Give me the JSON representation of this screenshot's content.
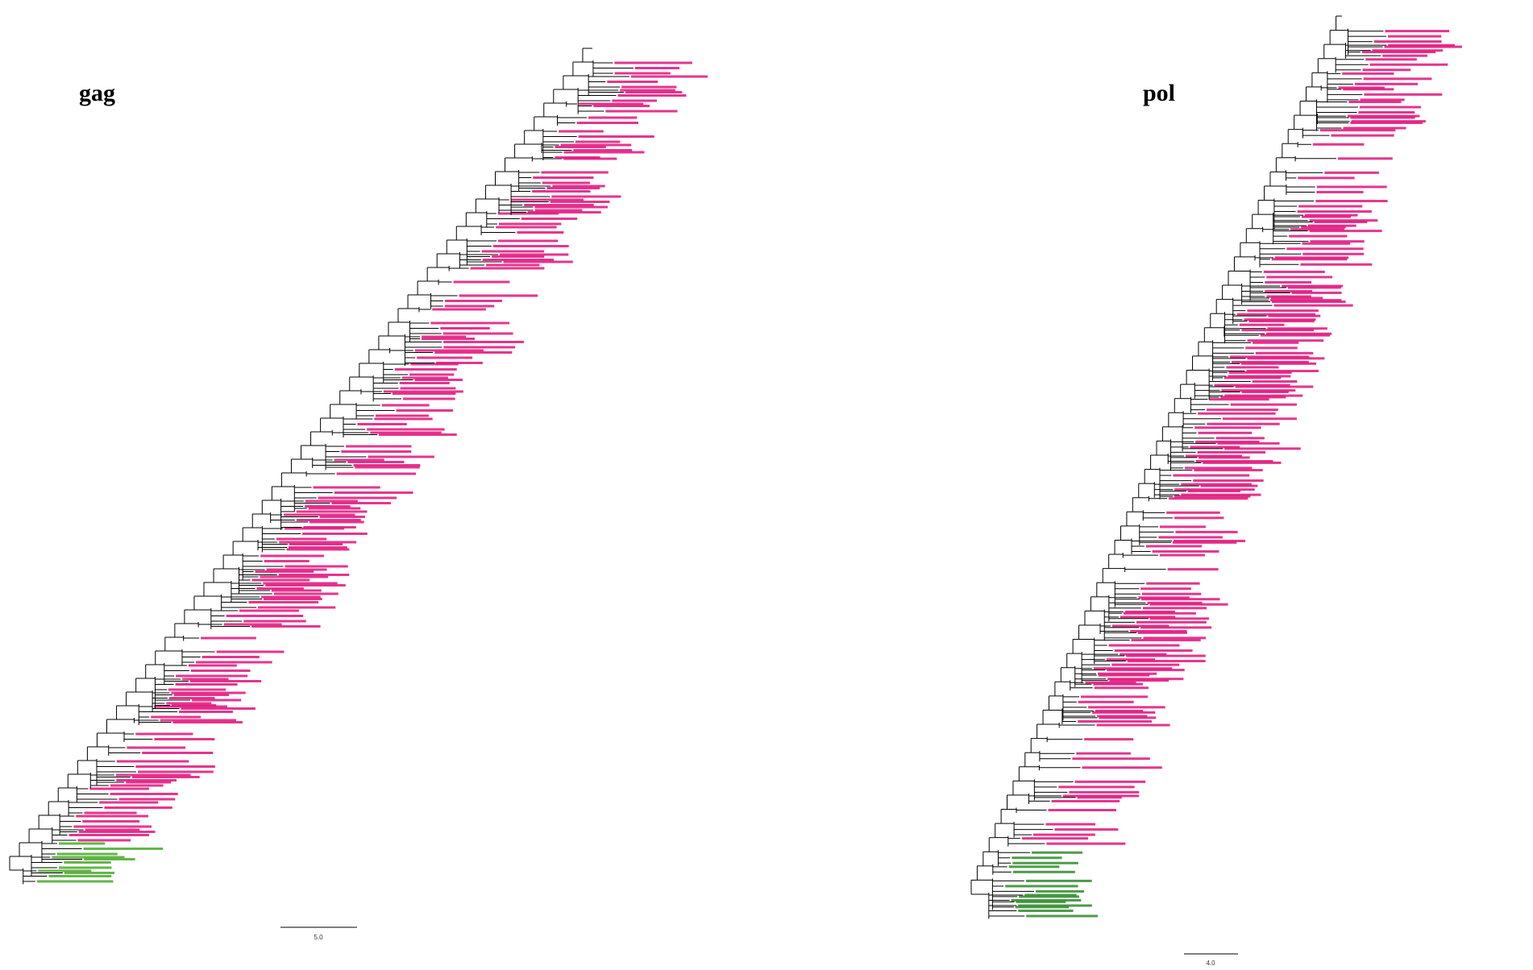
{
  "panels": [
    {
      "title": "gag",
      "scale_label": "5.0"
    },
    {
      "title": "pol",
      "scale_label": "4.0"
    }
  ]
}
